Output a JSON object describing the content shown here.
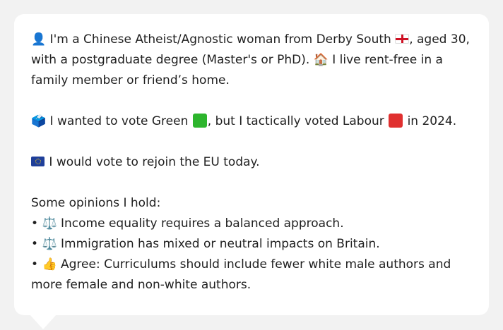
{
  "colors": {
    "background": "#f2f2f2",
    "bubble": "#ffffff",
    "text": "#1f1f1f",
    "green_square": "#2db52d",
    "red_square": "#e0302f",
    "eu_blue": "#1f3f9a"
  },
  "icons": {
    "person": "👤",
    "house": "🏠",
    "ballot": "🗳️",
    "scales": "⚖️",
    "thumbs_up": "👍"
  },
  "profile": {
    "line1_a": "I'm a Chinese Atheist/Agnostic woman from Derby South",
    "line1_b": ", aged 30, with a postgraduate degree (Master's or PhD).",
    "line1_c": "I live rent-free in a family member or friend’s home."
  },
  "vote": {
    "a": "I wanted to vote Green",
    "b": ", but I tactically voted Labour",
    "c": "in 2024."
  },
  "eu": {
    "text": "I would vote to rejoin the EU today."
  },
  "opinions": {
    "heading": "Some opinions I hold:",
    "bullet": "•",
    "items": [
      "Income equality requires a balanced approach.",
      "Immigration has mixed or neutral impacts on Britain.",
      "Agree: Curriculums should include fewer white male authors and more female and non-white authors."
    ]
  }
}
